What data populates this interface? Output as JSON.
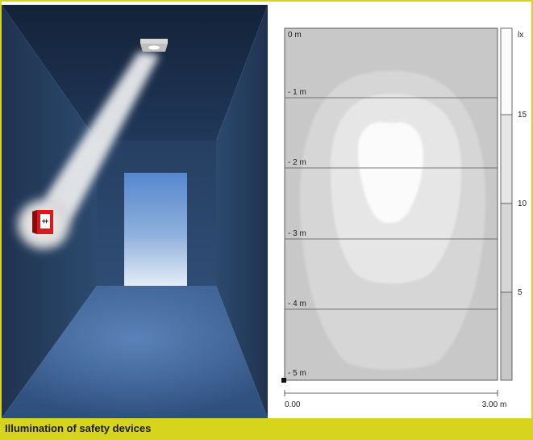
{
  "figure": {
    "caption": "Illumination of safety devices"
  },
  "plot": {
    "depth_labels": [
      "0 m",
      "- 1 m",
      "- 2 m",
      "- 3 m",
      "- 4 m",
      "- 5 m"
    ],
    "width_labels": [
      "0.00",
      "3.00 m"
    ],
    "scale_unit": "lx",
    "scale_ticks": [
      "15",
      "10",
      "5"
    ],
    "colors": {
      "zone_outer": "#c8c8c8",
      "zone_2": "#d6d6d6",
      "zone_3": "#e6e6e6",
      "zone_inner": "#fbfbfb",
      "accent": "#d7d41d"
    }
  },
  "corridor": {
    "device_icon": "fire-alarm-call-point-icon",
    "luminaire_icon": "ceiling-spotlight-icon"
  }
}
